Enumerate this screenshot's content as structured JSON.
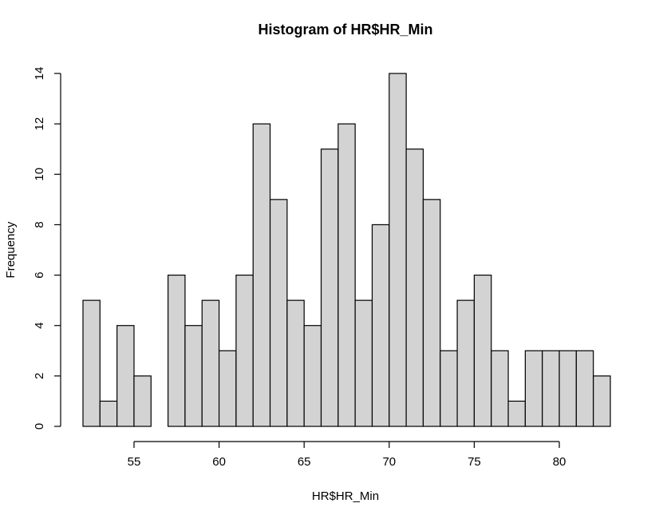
{
  "chart_data": {
    "type": "bar",
    "title": "Histogram of HR$HR_Min",
    "xlabel": "HR$HR_Min",
    "ylabel": "Frequency",
    "bins": [
      {
        "start": 52,
        "end": 53,
        "count": 5
      },
      {
        "start": 53,
        "end": 54,
        "count": 1
      },
      {
        "start": 54,
        "end": 55,
        "count": 4
      },
      {
        "start": 55,
        "end": 56,
        "count": 2
      },
      {
        "start": 56,
        "end": 57,
        "count": 0
      },
      {
        "start": 57,
        "end": 58,
        "count": 6
      },
      {
        "start": 58,
        "end": 59,
        "count": 4
      },
      {
        "start": 59,
        "end": 60,
        "count": 5
      },
      {
        "start": 60,
        "end": 61,
        "count": 3
      },
      {
        "start": 61,
        "end": 62,
        "count": 6
      },
      {
        "start": 62,
        "end": 63,
        "count": 12
      },
      {
        "start": 63,
        "end": 64,
        "count": 9
      },
      {
        "start": 64,
        "end": 65,
        "count": 5
      },
      {
        "start": 65,
        "end": 66,
        "count": 4
      },
      {
        "start": 66,
        "end": 67,
        "count": 11
      },
      {
        "start": 67,
        "end": 68,
        "count": 12
      },
      {
        "start": 68,
        "end": 69,
        "count": 5
      },
      {
        "start": 69,
        "end": 70,
        "count": 8
      },
      {
        "start": 70,
        "end": 71,
        "count": 14
      },
      {
        "start": 71,
        "end": 72,
        "count": 11
      },
      {
        "start": 72,
        "end": 73,
        "count": 9
      },
      {
        "start": 73,
        "end": 74,
        "count": 3
      },
      {
        "start": 74,
        "end": 75,
        "count": 5
      },
      {
        "start": 75,
        "end": 76,
        "count": 6
      },
      {
        "start": 76,
        "end": 77,
        "count": 3
      },
      {
        "start": 77,
        "end": 78,
        "count": 1
      },
      {
        "start": 78,
        "end": 79,
        "count": 3
      },
      {
        "start": 79,
        "end": 80,
        "count": 3
      },
      {
        "start": 80,
        "end": 81,
        "count": 3
      },
      {
        "start": 81,
        "end": 82,
        "count": 3
      },
      {
        "start": 82,
        "end": 83,
        "count": 2
      }
    ],
    "xlim": [
      52,
      83
    ],
    "ylim": [
      0,
      14
    ],
    "xticks": [
      "55",
      "60",
      "65",
      "70",
      "75",
      "80"
    ],
    "xtick_values": [
      55,
      60,
      65,
      70,
      75,
      80
    ],
    "yticks": [
      "0",
      "2",
      "4",
      "6",
      "8",
      "10",
      "12",
      "14"
    ],
    "ytick_values": [
      0,
      2,
      4,
      6,
      8,
      10,
      12,
      14
    ],
    "bar_fill": "#d3d3d3",
    "bar_stroke": "#000000",
    "grid": false
  }
}
